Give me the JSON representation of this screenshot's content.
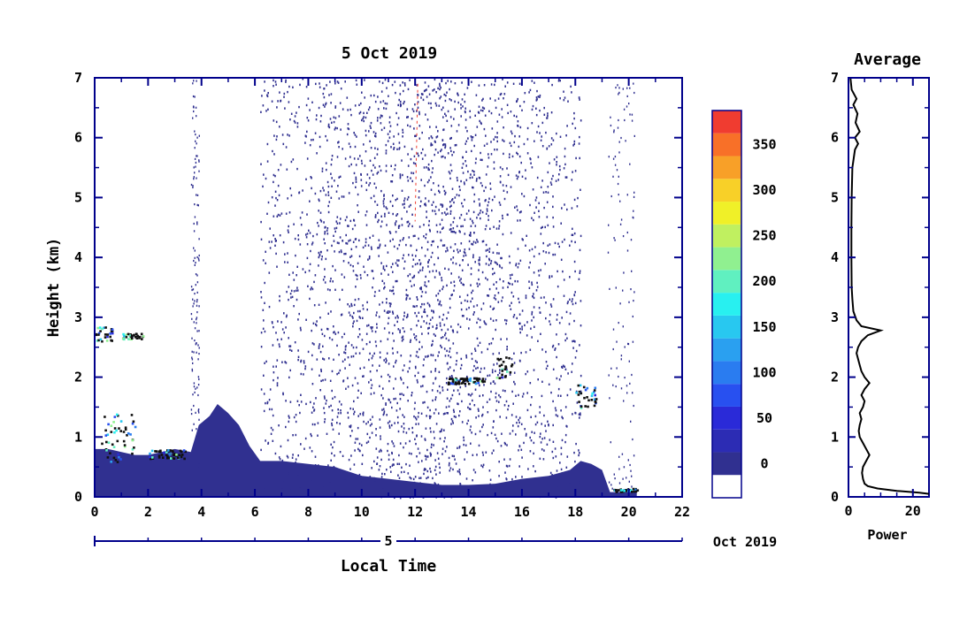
{
  "chart_data": [
    {
      "type": "heatmap",
      "title": "5 Oct 2019",
      "xlabel": "Local Time",
      "ylabel": "Height (km)",
      "xlim": [
        0,
        22
      ],
      "ylim": [
        0,
        7
      ],
      "x_ticks": [
        "0",
        "2",
        "4",
        "6",
        "8",
        "10",
        "12",
        "14",
        "16",
        "18",
        "20",
        "22"
      ],
      "y_ticks": [
        "0",
        "1",
        "2",
        "3",
        "4",
        "5",
        "6",
        "7"
      ],
      "date_axis": {
        "day_label": "5",
        "month_label": "Oct 2019"
      },
      "colorbar": {
        "ticks": [
          "0",
          "50",
          "100",
          "150",
          "200",
          "250",
          "300",
          "350"
        ],
        "levels": [
          -25,
          0,
          25,
          50,
          75,
          100,
          125,
          150,
          175,
          200,
          225,
          250,
          275,
          300,
          325,
          350,
          375
        ],
        "colors": [
          "#ffffff",
          "#303090",
          "#2c2cb4",
          "#2a2ad8",
          "#2850f0",
          "#2a7cf0",
          "#2aa0f0",
          "#28c8f0",
          "#28f0f0",
          "#60f0c0",
          "#90f090",
          "#c0f060",
          "#f0f028",
          "#f8d028",
          "#f8a028",
          "#f87028",
          "#f03c30"
        ]
      },
      "regions": {
        "boundary_layer_top_km": [
          [
            0.0,
            0.8
          ],
          [
            0.5,
            0.8
          ],
          [
            1.0,
            0.75
          ],
          [
            1.5,
            0.7
          ],
          [
            2.0,
            0.7
          ],
          [
            2.5,
            0.75
          ],
          [
            3.0,
            0.8
          ],
          [
            3.6,
            0.75
          ],
          [
            3.9,
            1.2
          ],
          [
            4.3,
            1.35
          ],
          [
            4.6,
            1.55
          ],
          [
            5.0,
            1.4
          ],
          [
            5.4,
            1.2
          ],
          [
            5.8,
            0.85
          ],
          [
            6.2,
            0.6
          ],
          [
            7.0,
            0.6
          ],
          [
            8.0,
            0.55
          ],
          [
            9.0,
            0.5
          ],
          [
            10.0,
            0.35
          ],
          [
            11.0,
            0.3
          ],
          [
            12.0,
            0.25
          ],
          [
            13.0,
            0.2
          ],
          [
            14.0,
            0.2
          ],
          [
            15.0,
            0.22
          ],
          [
            16.0,
            0.3
          ],
          [
            17.0,
            0.35
          ],
          [
            17.8,
            0.45
          ],
          [
            18.2,
            0.6
          ],
          [
            18.6,
            0.55
          ],
          [
            19.0,
            0.45
          ],
          [
            19.3,
            0.08
          ],
          [
            20.3,
            0.08
          ]
        ],
        "noise_scatter_span_h": [
          6.2,
          18.2
        ],
        "data_end_h": 20.3
      },
      "cloud_segments": [
        {
          "t": [
            0.0,
            0.7
          ],
          "h": [
            2.6,
            2.85
          ]
        },
        {
          "t": [
            1.0,
            1.8
          ],
          "h": [
            2.65,
            2.75
          ]
        },
        {
          "t": [
            13.2,
            14.6
          ],
          "h": [
            1.9,
            2.0
          ]
        },
        {
          "t": [
            15.0,
            15.6
          ],
          "h": [
            2.0,
            2.35
          ]
        },
        {
          "t": [
            18.0,
            18.8
          ],
          "h": [
            1.5,
            1.9
          ]
        },
        {
          "t": [
            0.2,
            1.5
          ],
          "h": [
            0.6,
            1.4
          ]
        },
        {
          "t": [
            2.0,
            3.4
          ],
          "h": [
            0.65,
            0.8
          ]
        },
        {
          "t": [
            19.4,
            20.3
          ],
          "h": [
            0.1,
            0.15
          ]
        }
      ]
    },
    {
      "type": "line",
      "title": "Average",
      "xlabel": "Power",
      "ylabel": "",
      "xlim": [
        0,
        25
      ],
      "ylim": [
        0,
        7
      ],
      "x_ticks": [
        "0",
        "20"
      ],
      "y_ticks": [
        "0",
        "1",
        "2",
        "3",
        "4",
        "5",
        "6",
        "7"
      ],
      "series": [
        {
          "points": [
            [
              25,
              0.05
            ],
            [
              22,
              0.07
            ],
            [
              15,
              0.1
            ],
            [
              9,
              0.14
            ],
            [
              6,
              0.18
            ],
            [
              5,
              0.22
            ],
            [
              4.5,
              0.3
            ],
            [
              4.2,
              0.4
            ],
            [
              4.5,
              0.5
            ],
            [
              5.5,
              0.6
            ],
            [
              6.5,
              0.7
            ],
            [
              5.5,
              0.8
            ],
            [
              4.5,
              0.9
            ],
            [
              3.5,
              1.0
            ],
            [
              3.2,
              1.1
            ],
            [
              3.5,
              1.2
            ],
            [
              4.0,
              1.3
            ],
            [
              3.5,
              1.4
            ],
            [
              4.5,
              1.5
            ],
            [
              5.0,
              1.6
            ],
            [
              4.0,
              1.7
            ],
            [
              5.0,
              1.8
            ],
            [
              6.5,
              1.9
            ],
            [
              5.0,
              2.0
            ],
            [
              4.0,
              2.1
            ],
            [
              3.5,
              2.2
            ],
            [
              3.0,
              2.3
            ],
            [
              2.5,
              2.4
            ],
            [
              3.0,
              2.5
            ],
            [
              4.0,
              2.6
            ],
            [
              6.0,
              2.7
            ],
            [
              10.0,
              2.78
            ],
            [
              4.0,
              2.85
            ],
            [
              2.5,
              2.95
            ],
            [
              1.5,
              3.1
            ],
            [
              1.2,
              3.3
            ],
            [
              1.0,
              3.5
            ],
            [
              0.9,
              4.0
            ],
            [
              0.9,
              4.5
            ],
            [
              1.0,
              5.0
            ],
            [
              1.2,
              5.5
            ],
            [
              2.0,
              5.8
            ],
            [
              3.0,
              5.9
            ],
            [
              2.0,
              6.0
            ],
            [
              3.5,
              6.1
            ],
            [
              2.2,
              6.25
            ],
            [
              2.8,
              6.4
            ],
            [
              1.5,
              6.55
            ],
            [
              2.5,
              6.65
            ],
            [
              1.0,
              6.8
            ],
            [
              0.6,
              7.0
            ]
          ]
        }
      ]
    }
  ]
}
